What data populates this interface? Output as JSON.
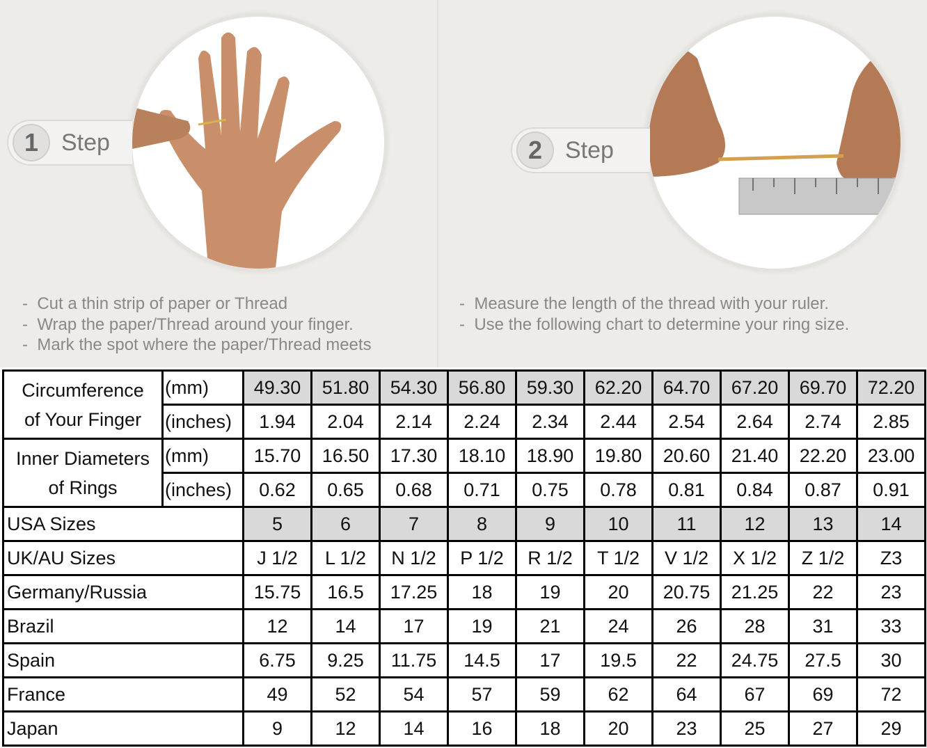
{
  "step1": {
    "number": "1",
    "label": "Step",
    "instructions": [
      "Cut a thin strip of paper or Thread",
      "Wrap the paper/Thread around your finger.",
      "Mark the spot where the paper/Thread meets"
    ]
  },
  "step2": {
    "number": "2",
    "label": "Step",
    "instructions": [
      "Measure the length of the thread with your ruler.",
      "Use the following chart to determine your ring size."
    ]
  },
  "table": {
    "circumference": {
      "label1": "Circumference",
      "label2": "of Your Finger",
      "unit_mm": "(mm)",
      "unit_in": "(inches)",
      "mm": [
        "49.30",
        "51.80",
        "54.30",
        "56.80",
        "59.30",
        "62.20",
        "64.70",
        "67.20",
        "69.70",
        "72.20"
      ],
      "inches": [
        "1.94",
        "2.04",
        "2.14",
        "2.24",
        "2.34",
        "2.44",
        "2.54",
        "2.64",
        "2.74",
        "2.85"
      ]
    },
    "diameter": {
      "label1": "Inner Diameters",
      "label2": "of Rings",
      "unit_mm": "(mm)",
      "unit_in": "(inches)",
      "mm": [
        "15.70",
        "16.50",
        "17.30",
        "18.10",
        "18.90",
        "19.80",
        "20.60",
        "21.40",
        "22.20",
        "23.00"
      ],
      "inches": [
        "0.62",
        "0.65",
        "0.68",
        "0.71",
        "0.75",
        "0.78",
        "0.81",
        "0.84",
        "0.87",
        "0.91"
      ]
    },
    "rows": [
      {
        "label": "USA Sizes",
        "values": [
          "5",
          "6",
          "7",
          "8",
          "9",
          "10",
          "11",
          "12",
          "13",
          "14"
        ]
      },
      {
        "label": "UK/AU Sizes",
        "values": [
          "J 1/2",
          "L 1/2",
          "N 1/2",
          "P 1/2",
          "R 1/2",
          "T 1/2",
          "V 1/2",
          "X 1/2",
          "Z 1/2",
          "Z3"
        ]
      },
      {
        "label": "Germany/Russia",
        "values": [
          "15.75",
          "16.5",
          "17.25",
          "18",
          "19",
          "20",
          "20.75",
          "21.25",
          "22",
          "23"
        ]
      },
      {
        "label": "Brazil",
        "values": [
          "12",
          "14",
          "17",
          "19",
          "21",
          "24",
          "26",
          "28",
          "31",
          "33"
        ]
      },
      {
        "label": "Spain",
        "values": [
          "6.75",
          "9.25",
          "11.75",
          "14.5",
          "17",
          "19.5",
          "22",
          "24.75",
          "27.5",
          "30"
        ]
      },
      {
        "label": "France",
        "values": [
          "49",
          "52",
          "54",
          "57",
          "59",
          "62",
          "64",
          "67",
          "69",
          "72"
        ]
      },
      {
        "label": "Japan",
        "values": [
          "9",
          "12",
          "14",
          "16",
          "18",
          "20",
          "23",
          "25",
          "27",
          "29"
        ]
      }
    ]
  },
  "colors": {
    "highlight": "#d9d9d9",
    "background": "#eeece8"
  }
}
